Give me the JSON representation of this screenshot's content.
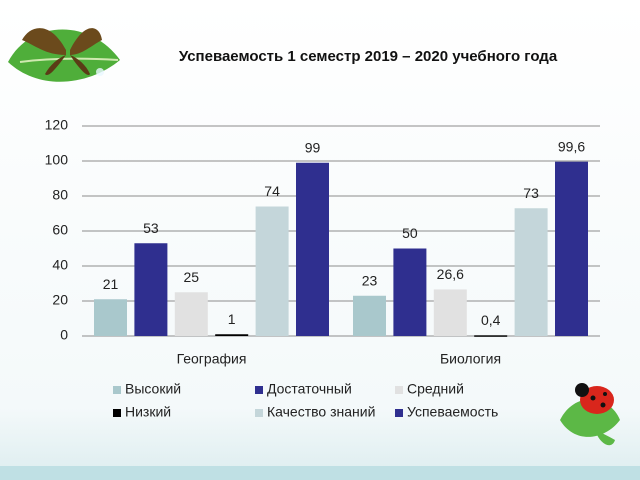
{
  "chart_data": {
    "type": "bar",
    "title": "Успеваемость 1 семестр 2019 – 2020 учебного года",
    "categories": [
      "География",
      "Биология"
    ],
    "series": [
      {
        "name": "Высокий",
        "color": "#a9c8cc",
        "values": [
          21,
          23
        ]
      },
      {
        "name": "Достаточный",
        "color": "#2f2f8f",
        "values": [
          53,
          50
        ]
      },
      {
        "name": "Средний",
        "color": "#e1e1e1",
        "values": [
          25,
          26.6
        ],
        "value_labels": [
          "25",
          "26,6"
        ]
      },
      {
        "name": "Низкий",
        "color": "#000000",
        "values": [
          1,
          0.4
        ],
        "value_labels": [
          "1",
          "0,4"
        ]
      },
      {
        "name": "Качество знаний",
        "color": "#c4d6da",
        "values": [
          74,
          73
        ]
      },
      {
        "name": "Успеваемость",
        "color": "#2f2f8f",
        "values": [
          99,
          99.6
        ],
        "value_labels": [
          "99",
          "99,6"
        ]
      }
    ],
    "ylim": [
      0,
      120
    ],
    "yticks": [
      0,
      20,
      40,
      60,
      80,
      100,
      120
    ],
    "grid": true
  }
}
